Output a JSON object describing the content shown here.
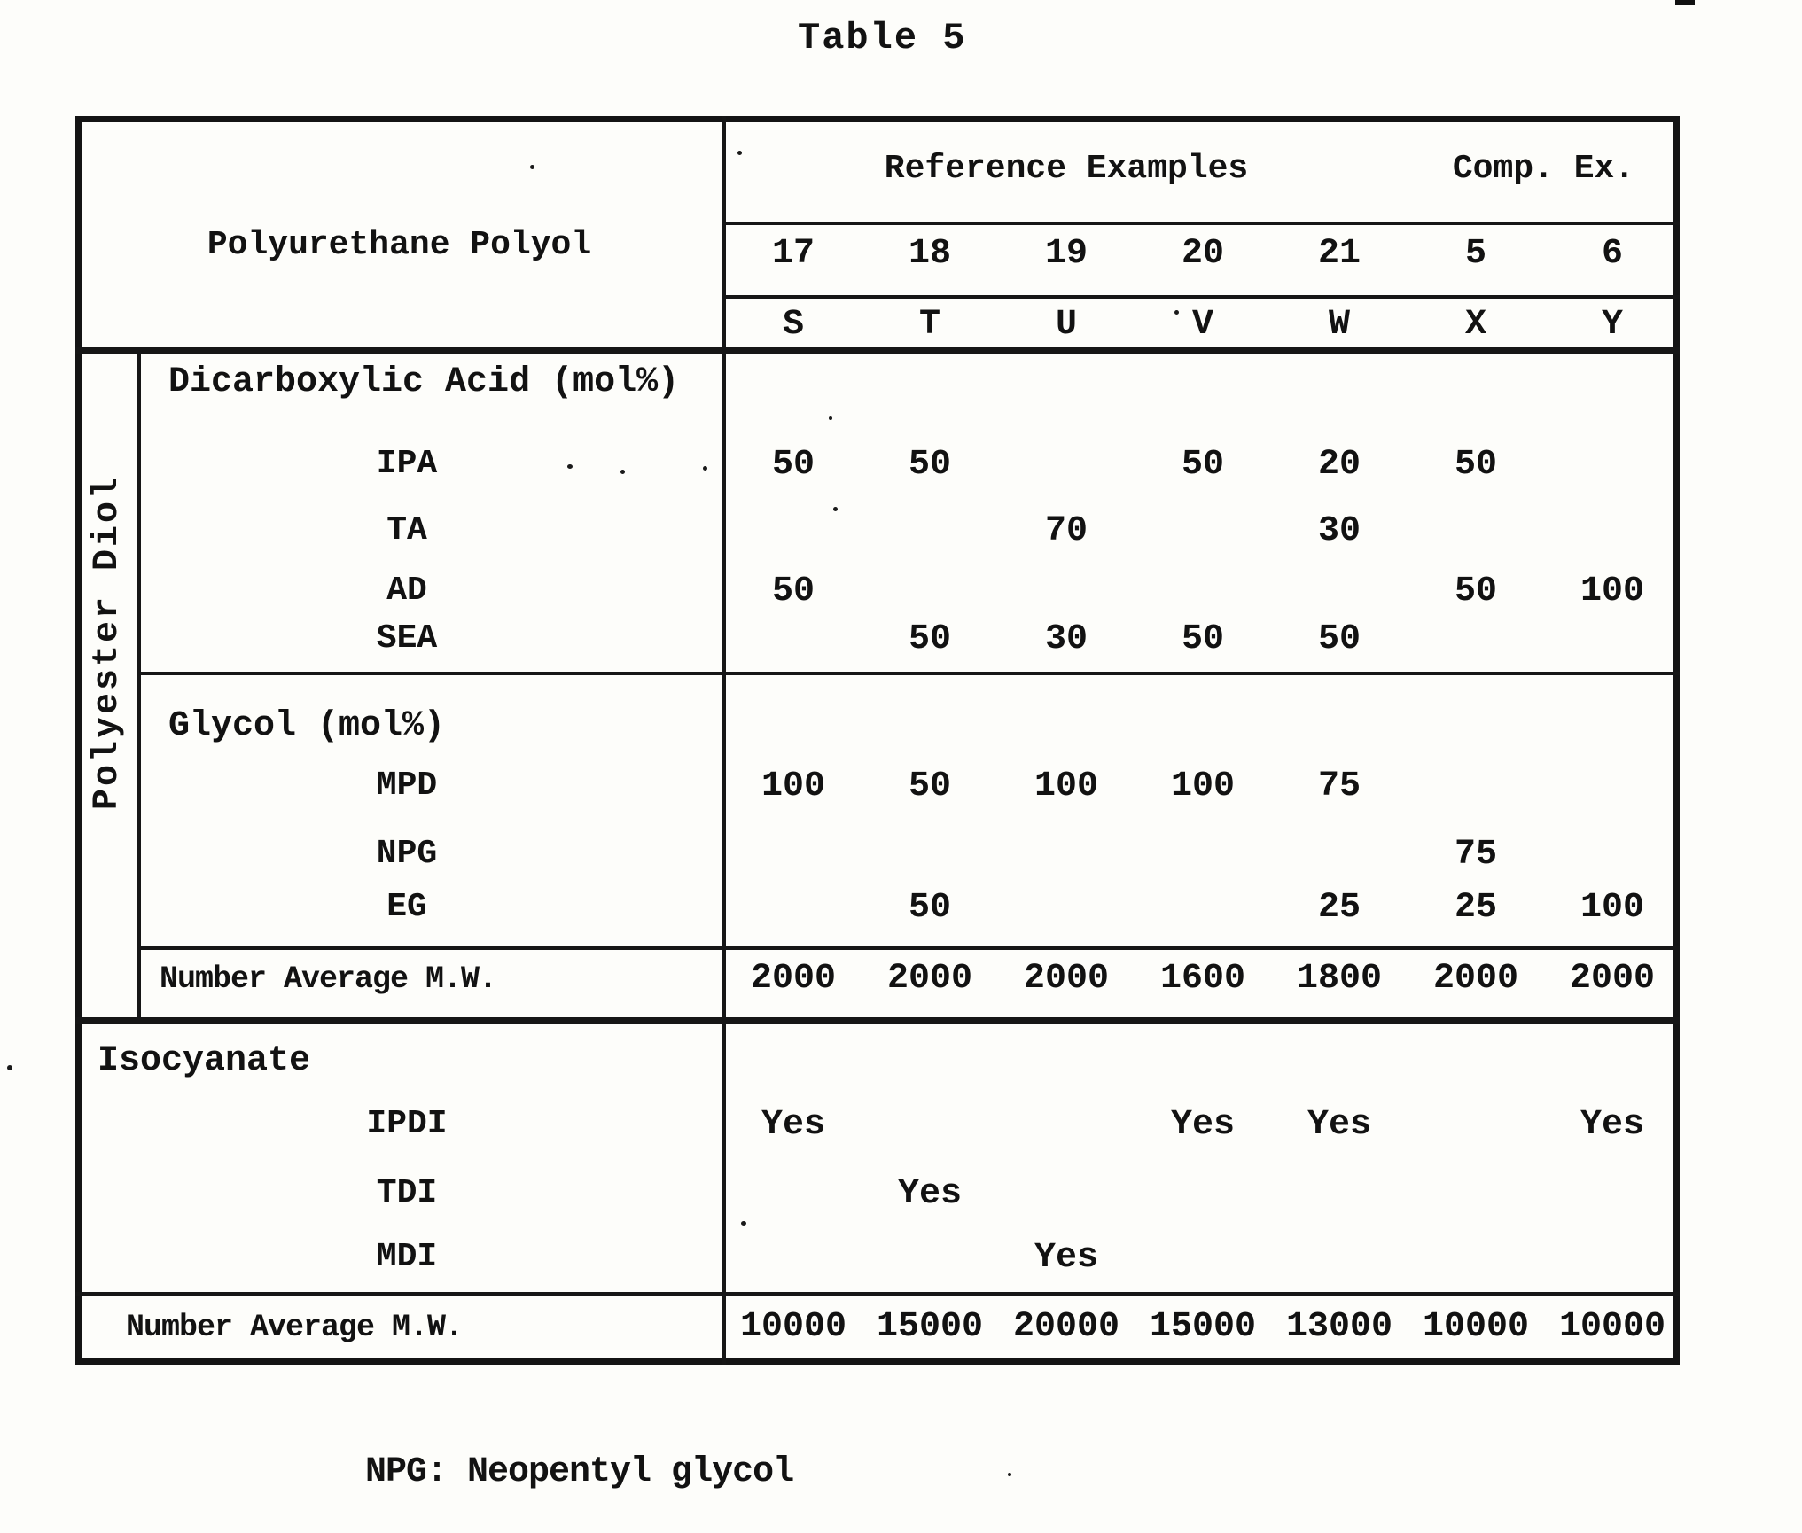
{
  "title": "Table 5",
  "footnote": "NPG: Neopentyl glycol",
  "table": {
    "corner_label": "Polyurethane Polyol",
    "header_groups": [
      {
        "label": "Reference Examples",
        "span": 5
      },
      {
        "label": "Comp. Ex.",
        "span": 2
      }
    ],
    "example_numbers": [
      "17",
      "18",
      "19",
      "20",
      "21",
      "5",
      "6"
    ],
    "sample_letters": [
      "S",
      "T",
      "U",
      "V",
      "W",
      "X",
      "Y"
    ],
    "polyester_diol_label": "Polyester Diol",
    "sections": [
      {
        "label": "Dicarboxylic Acid (mol%)",
        "rows": [
          {
            "label": "IPA",
            "values": [
              "50",
              "50",
              "",
              "50",
              "20",
              "50",
              ""
            ]
          },
          {
            "label": "TA",
            "values": [
              "",
              "",
              "70",
              "",
              "30",
              "",
              ""
            ]
          },
          {
            "label": "AD",
            "values": [
              "50",
              "",
              "",
              "",
              "",
              "50",
              "100"
            ]
          },
          {
            "label": "SEA",
            "values": [
              "",
              "50",
              "30",
              "50",
              "50",
              "",
              ""
            ]
          }
        ]
      },
      {
        "label": "Glycol (mol%)",
        "rows": [
          {
            "label": "MPD",
            "values": [
              "100",
              "50",
              "100",
              "100",
              "75",
              "",
              ""
            ]
          },
          {
            "label": "NPG",
            "values": [
              "",
              "",
              "",
              "",
              "",
              "75",
              ""
            ]
          },
          {
            "label": "EG",
            "values": [
              "",
              "50",
              "",
              "",
              "25",
              "25",
              "100"
            ]
          }
        ]
      }
    ],
    "polyester_mw_row": {
      "label": "Number Average M.W.",
      "values": [
        "2000",
        "2000",
        "2000",
        "1600",
        "1800",
        "2000",
        "2000"
      ]
    },
    "isocyanate_section": {
      "label": "Isocyanate",
      "rows": [
        {
          "label": "IPDI",
          "values": [
            "Yes",
            "",
            "",
            "Yes",
            "Yes",
            "",
            "Yes"
          ]
        },
        {
          "label": "TDI",
          "values": [
            "",
            "Yes",
            "",
            "",
            "",
            "",
            ""
          ]
        },
        {
          "label": "MDI",
          "values": [
            "",
            "",
            "Yes",
            "",
            "",
            "",
            ""
          ]
        }
      ]
    },
    "polyurethane_mw_row": {
      "label": "Number Average M.W.",
      "values": [
        "10000",
        "15000",
        "20000",
        "15000",
        "13000",
        "10000",
        "10000"
      ]
    }
  }
}
